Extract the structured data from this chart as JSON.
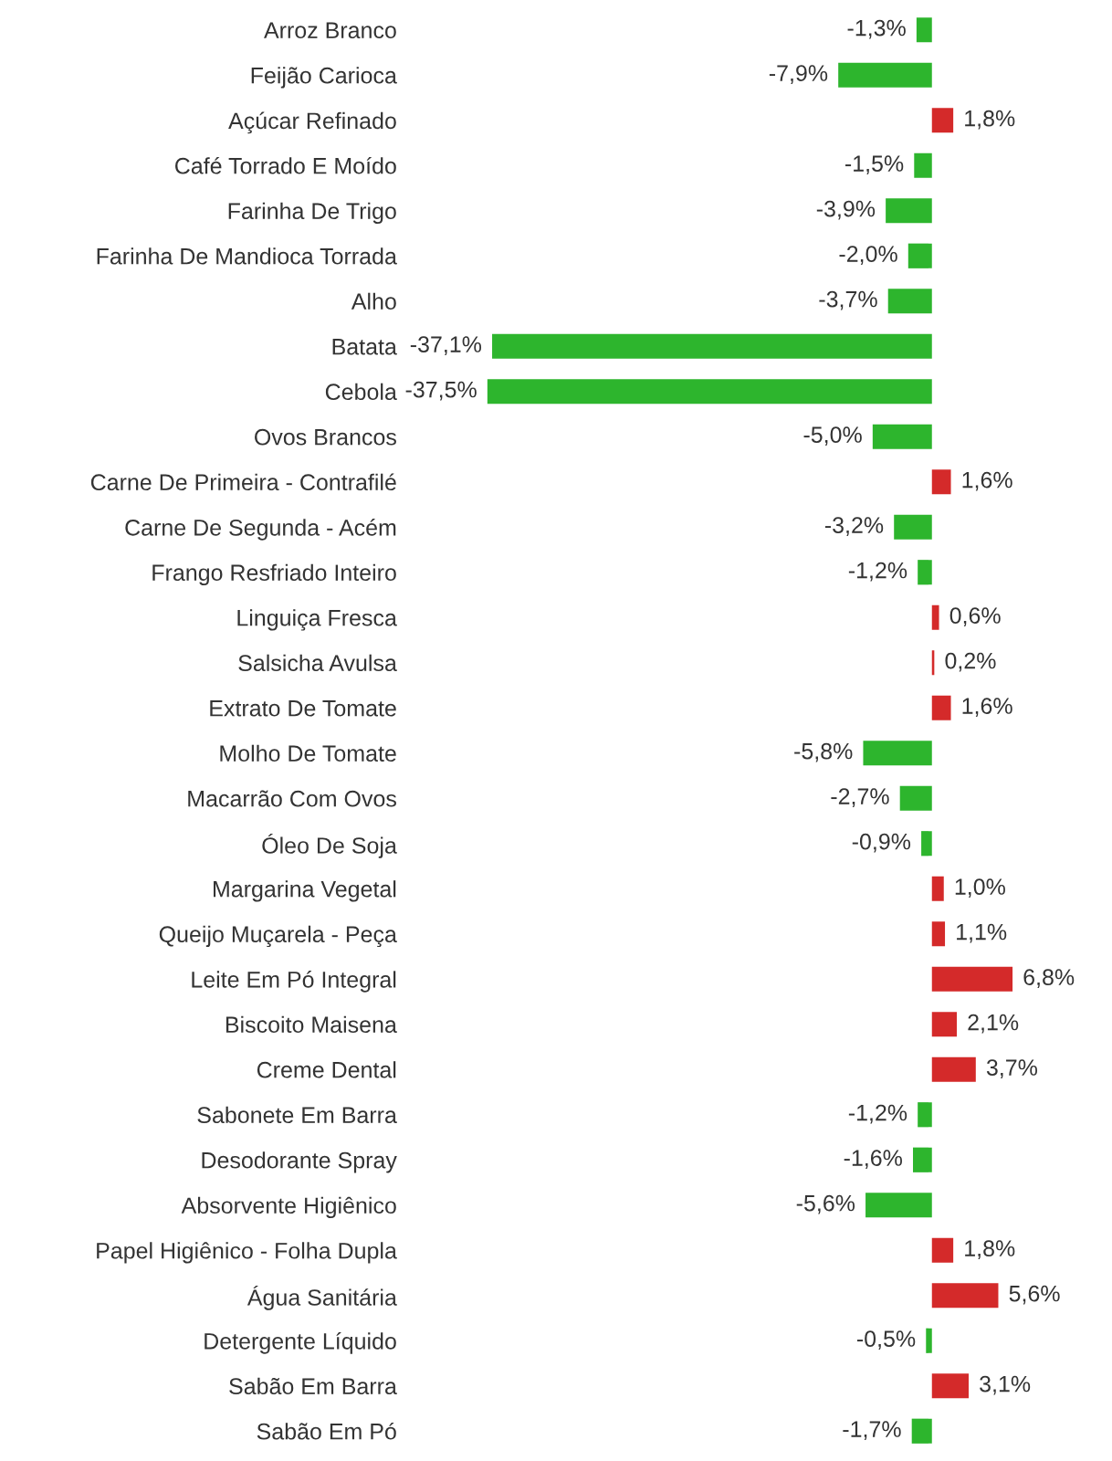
{
  "chart_data": {
    "type": "bar",
    "orientation": "horizontal",
    "categories": [
      "Arroz Branco",
      "Feijão Carioca",
      "Açúcar Refinado",
      "Café Torrado E Moído",
      "Farinha De Trigo",
      "Farinha De Mandioca Torrada",
      "Alho",
      "Batata",
      "Cebola",
      "Ovos Brancos",
      "Carne De Primeira - Contrafilé",
      "Carne De Segunda - Acém",
      "Frango Resfriado Inteiro",
      "Linguiça Fresca",
      "Salsicha Avulsa",
      "Extrato De Tomate",
      "Molho De Tomate",
      "Macarrão Com Ovos",
      "Óleo De Soja",
      "Margarina Vegetal",
      "Queijo Muçarela - Peça",
      "Leite Em Pó Integral",
      "Biscoito Maisena",
      "Creme Dental",
      "Sabonete Em Barra",
      "Desodorante Spray",
      "Absorvente Higiênico",
      "Papel Higiênico - Folha Dupla",
      "Água Sanitária",
      "Detergente Líquido",
      "Sabão Em Barra",
      "Sabão Em Pó"
    ],
    "values": [
      -1.3,
      -7.9,
      1.8,
      -1.5,
      -3.9,
      -2.0,
      -3.7,
      -37.1,
      -37.5,
      -5.0,
      1.6,
      -3.2,
      -1.2,
      0.6,
      0.2,
      1.6,
      -5.8,
      -2.7,
      -0.9,
      1.0,
      1.1,
      6.8,
      2.1,
      3.7,
      -1.2,
      -1.6,
      -5.6,
      1.8,
      5.6,
      -0.5,
      3.1,
      -1.7
    ],
    "value_labels": [
      "-1,3%",
      "-7,9%",
      "1,8%",
      "-1,5%",
      "-3,9%",
      "-2,0%",
      "-3,7%",
      "-37,1%",
      "-37,5%",
      "-5,0%",
      "1,6%",
      "-3,2%",
      "-1,2%",
      "0,6%",
      "0,2%",
      "1,6%",
      "-5,8%",
      "-2,7%",
      "-0,9%",
      "1,0%",
      "1,1%",
      "6,8%",
      "2,1%",
      "3,7%",
      "-1,2%",
      "-1,6%",
      "-5,6%",
      "1,8%",
      "5,6%",
      "-0,5%",
      "3,1%",
      "-1,7%"
    ],
    "colors": [
      "#2db52d",
      "#2db52d",
      "#d42a2a",
      "#2db52d",
      "#2db52d",
      "#2db52d",
      "#2db52d",
      "#2db52d",
      "#2db52d",
      "#2db52d",
      "#d42a2a",
      "#2db52d",
      "#2db52d",
      "#d42a2a",
      "#d42a2a",
      "#d42a2a",
      "#2db52d",
      "#2db52d",
      "#2db52d",
      "#d42a2a",
      "#d42a2a",
      "#d42a2a",
      "#d42a2a",
      "#d42a2a",
      "#2db52d",
      "#2db52d",
      "#2db52d",
      "#d42a2a",
      "#d42a2a",
      "#2db52d",
      "#d42a2a",
      "#2db52d"
    ],
    "grid": false,
    "legend": false
  }
}
